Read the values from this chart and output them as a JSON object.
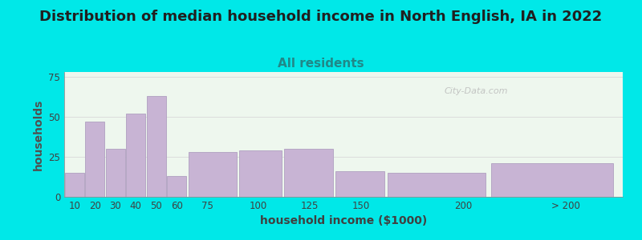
{
  "title": "Distribution of median household income in North English, IA in 2022",
  "subtitle": "All residents",
  "xlabel": "household income ($1000)",
  "ylabel": "households",
  "background_color": "#00e8e8",
  "plot_bg_color": "#eef7ee",
  "bar_color": "#c8b4d4",
  "bar_edge_color": "#b0a0c0",
  "categories": [
    "10",
    "20",
    "30",
    "40",
    "50",
    "60",
    "75",
    "100",
    "125",
    "150",
    "200",
    "> 200"
  ],
  "values": [
    15,
    47,
    30,
    52,
    63,
    13,
    28,
    29,
    30,
    16,
    15,
    21
  ],
  "bar_lefts": [
    5,
    15,
    25,
    35,
    45,
    55,
    65,
    90,
    112,
    137,
    162,
    212
  ],
  "bar_widths": [
    10,
    10,
    10,
    10,
    10,
    10,
    25,
    22,
    25,
    25,
    50,
    63
  ],
  "bar_positions": [
    10,
    20,
    30,
    40,
    50,
    60,
    75,
    100,
    125,
    150,
    200,
    250
  ],
  "ylim": [
    0,
    78
  ],
  "yticks": [
    0,
    25,
    50,
    75
  ],
  "xlim_left": 5,
  "xlim_right": 278,
  "title_fontsize": 13,
  "subtitle_fontsize": 11,
  "axis_label_fontsize": 10,
  "tick_fontsize": 8.5,
  "ylabel_color": "#505050",
  "xlabel_color": "#404040",
  "title_color": "#202020",
  "subtitle_color": "#208888",
  "watermark": "City-Data.com",
  "grid_color": "#d8d8d8",
  "spine_color": "#909090"
}
